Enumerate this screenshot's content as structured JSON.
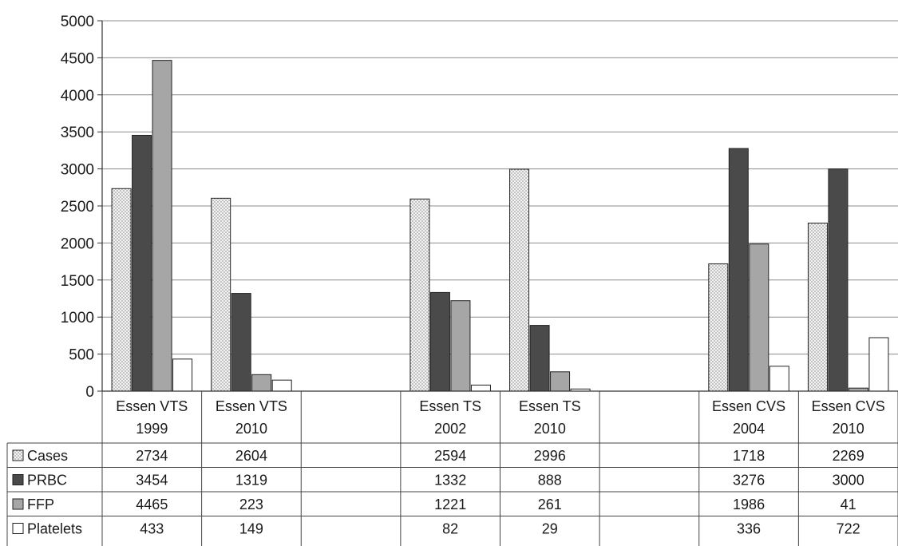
{
  "chart_data": {
    "type": "bar",
    "categories": [
      [
        "Essen VTS",
        "1999"
      ],
      [
        "Essen VTS",
        "2010"
      ],
      [
        "",
        ""
      ],
      [
        "Essen TS",
        "2002"
      ],
      [
        "Essen TS",
        "2010"
      ],
      [
        "",
        ""
      ],
      [
        "Essen CVS",
        "2004"
      ],
      [
        "Essen CVS",
        "2010"
      ]
    ],
    "series": [
      {
        "name": "Cases",
        "values": [
          2734,
          2604,
          null,
          2594,
          2996,
          null,
          1718,
          2269
        ],
        "labels": [
          "2734",
          "2604",
          "",
          "2594",
          "2996",
          "",
          "1718",
          "2269"
        ]
      },
      {
        "name": "PRBC",
        "values": [
          3454,
          1319,
          null,
          1332,
          888,
          null,
          3276,
          3000
        ],
        "labels": [
          "3454",
          "1319",
          "",
          "1332",
          "888",
          "",
          "3276",
          "3000"
        ]
      },
      {
        "name": "FFP",
        "values": [
          4465,
          223,
          null,
          1221,
          261,
          null,
          1986,
          41
        ],
        "labels": [
          "4465",
          "223",
          "",
          "1221",
          "261",
          "",
          "1986",
          "41"
        ]
      },
      {
        "name": "Platelets",
        "values": [
          433,
          149,
          null,
          82,
          29,
          null,
          336,
          722
        ],
        "labels": [
          "433",
          "149",
          "",
          "82",
          "29",
          "",
          "336",
          "722"
        ]
      }
    ],
    "yticks": [
      "0",
      "500",
      "1000",
      "1500",
      "2000",
      "2500",
      "3000",
      "3500",
      "4000",
      "4500",
      "5000"
    ],
    "ylim": [
      0,
      5000
    ],
    "grid": true,
    "legend": "data-table",
    "colors": {
      "Cases": "#f2f2f2",
      "PRBC": "#4a4a4a",
      "FFP": "#a6a6a6",
      "Platelets": "#ffffff"
    }
  }
}
